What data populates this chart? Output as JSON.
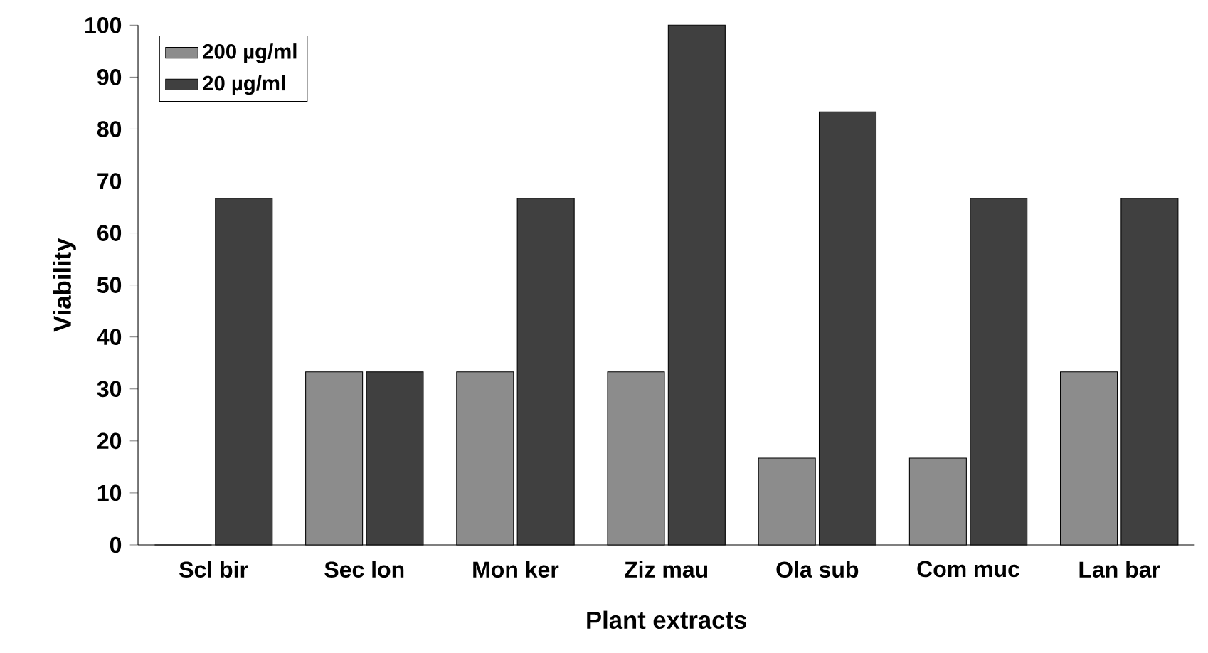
{
  "chart_data": {
    "type": "bar",
    "xlabel": "Plant extracts",
    "ylabel": "Viability",
    "categories": [
      "Scl bir",
      "Sec lon",
      "Mon ker",
      "Ziz mau",
      "Ola sub",
      "Com muc",
      "Lan bar"
    ],
    "series": [
      {
        "name": "200 µg/ml",
        "color": "#8c8c8c",
        "values": [
          0,
          33.3,
          33.3,
          33.3,
          16.7,
          16.7,
          33.3
        ]
      },
      {
        "name": "20 µg/ml",
        "color": "#404040",
        "values": [
          66.7,
          33.3,
          66.7,
          100,
          83.3,
          66.7,
          66.7
        ]
      }
    ],
    "ylim": [
      0,
      100
    ],
    "yticks": [
      0,
      10,
      20,
      30,
      40,
      50,
      60,
      70,
      80,
      90,
      100
    ],
    "grid": false,
    "legend": "top left"
  }
}
